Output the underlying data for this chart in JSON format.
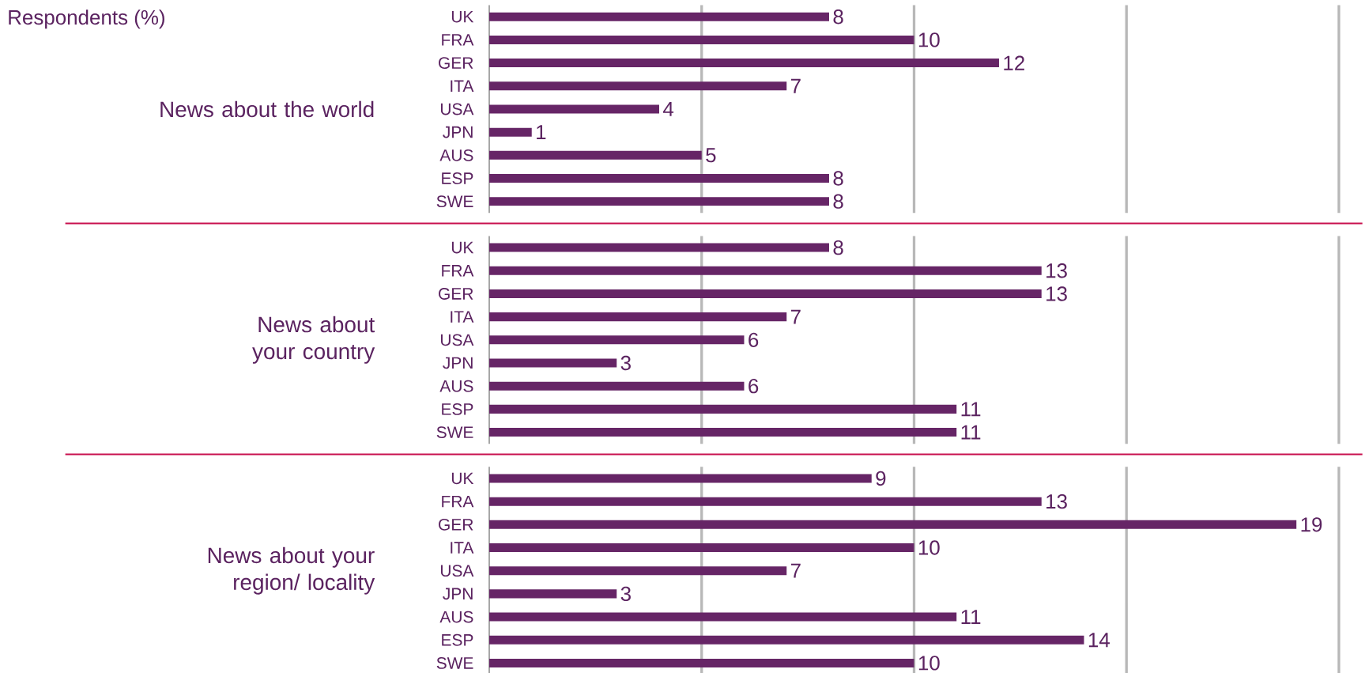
{
  "chart_data": [
    {
      "type": "bar",
      "orientation": "horizontal",
      "ylabel": "News about the world",
      "annotations": [
        "Respondents (%)"
      ],
      "categories": [
        "UK",
        "FRA",
        "GER",
        "ITA",
        "USA",
        "JPN",
        "AUS",
        "ESP",
        "SWE"
      ],
      "values": [
        8,
        10,
        12,
        7,
        4,
        1,
        5,
        8,
        8
      ],
      "color": "#662566",
      "xlim": [
        0,
        20
      ],
      "xticks": [
        {
          "value": 5,
          "label": null
        },
        {
          "value": 10,
          "label": null
        },
        {
          "value": 15,
          "label": null
        },
        {
          "value": 20,
          "label": null
        }
      ],
      "grid": "x",
      "tick_labels": "y",
      "data_labels": true
    },
    {
      "type": "bar",
      "orientation": "horizontal",
      "ylabel": "News about your country",
      "categories": [
        "UK",
        "FRA",
        "GER",
        "ITA",
        "USA",
        "JPN",
        "AUS",
        "ESP",
        "SWE"
      ],
      "values": [
        8,
        13,
        13,
        7,
        6,
        3,
        6,
        11,
        11
      ],
      "color": "#662566",
      "xlim": [
        0,
        20
      ],
      "xticks": [
        {
          "value": 5,
          "label": null
        },
        {
          "value": 10,
          "label": null
        },
        {
          "value": 15,
          "label": null
        },
        {
          "value": 20,
          "label": null
        }
      ],
      "grid": "x",
      "tick_labels": "y",
      "data_labels": true
    },
    {
      "type": "bar",
      "orientation": "horizontal",
      "ylabel": "News about your region/ locality",
      "categories": [
        "UK",
        "FRA",
        "GER",
        "ITA",
        "USA",
        "JPN",
        "AUS",
        "ESP",
        "SWE"
      ],
      "values": [
        9,
        13,
        19,
        10,
        7,
        3,
        11,
        14,
        10
      ],
      "color": "#662566",
      "xlim": [
        0,
        20
      ],
      "xticks": [
        {
          "value": 5,
          "label": null
        },
        {
          "value": 10,
          "label": null
        },
        {
          "value": 15,
          "label": null
        },
        {
          "value": 20,
          "label": null
        }
      ],
      "grid": "x",
      "tick_labels": "y",
      "data_labels": true
    }
  ]
}
